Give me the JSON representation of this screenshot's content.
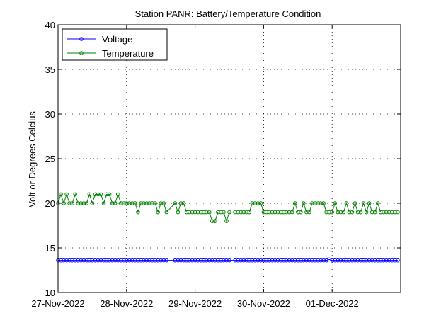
{
  "chart_data": {
    "type": "line",
    "title": "Station PANR: Battery/Temperature Condition",
    "xlabel": "",
    "ylabel": "Volt or Degrees Celcius",
    "ylim": [
      10,
      40
    ],
    "xlim": [
      0,
      5
    ],
    "yticks": [
      10,
      15,
      20,
      25,
      30,
      35,
      40
    ],
    "x_tick_positions": [
      0,
      1,
      2,
      3,
      4
    ],
    "x_tick_labels": [
      "27-Nov-2022",
      "28-Nov-2022",
      "29-Nov-2022",
      "30-Nov-2022",
      "01-Dec-2022"
    ],
    "grid": true,
    "legend_position": "top-left",
    "series": [
      {
        "name": "Voltage",
        "color": "#0000ff",
        "marker": "circle",
        "x": [
          0,
          0.0417,
          0.0833,
          0.125,
          0.1667,
          0.2083,
          0.25,
          0.2917,
          0.3333,
          0.375,
          0.4167,
          0.4583,
          0.5,
          0.5417,
          0.5833,
          0.625,
          0.6667,
          0.7083,
          0.75,
          0.7917,
          0.8333,
          0.875,
          0.9167,
          0.9583,
          1,
          1.0417,
          1.0833,
          1.125,
          1.1667,
          1.2083,
          1.25,
          1.2917,
          1.3333,
          1.375,
          1.4167,
          1.4583,
          1.5,
          1.5417,
          1.5833,
          1.7083,
          1.75,
          1.7917,
          1.8333,
          1.875,
          1.9167,
          1.9583,
          2,
          2.0417,
          2.0833,
          2.125,
          2.1667,
          2.2083,
          2.25,
          2.2917,
          2.3333,
          2.375,
          2.4167,
          2.4583,
          2.5,
          2.5833,
          2.625,
          2.6667,
          2.7083,
          2.75,
          2.7917,
          2.8333,
          2.875,
          2.9167,
          2.9583,
          3,
          3.0417,
          3.0833,
          3.125,
          3.1667,
          3.2083,
          3.25,
          3.2917,
          3.3333,
          3.375,
          3.4167,
          3.4583,
          3.5,
          3.5417,
          3.5833,
          3.625,
          3.6667,
          3.7083,
          3.75,
          3.7917,
          3.8333,
          3.875,
          3.9167,
          3.9583,
          4,
          4.0417,
          4.0833,
          4.125,
          4.1667,
          4.2083,
          4.25,
          4.2917,
          4.3333,
          4.375,
          4.4167,
          4.4583,
          4.5,
          4.5417,
          4.5833,
          4.625,
          4.6667,
          4.7083,
          4.75,
          4.7917,
          4.8333,
          4.875,
          4.9167,
          4.9583
        ],
        "y": [
          13.6,
          13.6,
          13.6,
          13.6,
          13.6,
          13.6,
          13.6,
          13.6,
          13.6,
          13.6,
          13.6,
          13.6,
          13.6,
          13.6,
          13.6,
          13.6,
          13.6,
          13.6,
          13.6,
          13.6,
          13.6,
          13.6,
          13.6,
          13.6,
          13.6,
          13.6,
          13.6,
          13.6,
          13.6,
          13.6,
          13.6,
          13.6,
          13.6,
          13.6,
          13.6,
          13.6,
          13.6,
          13.6,
          13.6,
          13.6,
          13.6,
          13.6,
          13.6,
          13.6,
          13.6,
          13.6,
          13.6,
          13.6,
          13.6,
          13.6,
          13.6,
          13.6,
          13.6,
          13.6,
          13.6,
          13.6,
          13.6,
          13.6,
          13.6,
          13.6,
          13.6,
          13.6,
          13.6,
          13.6,
          13.6,
          13.6,
          13.6,
          13.6,
          13.6,
          13.6,
          13.6,
          13.6,
          13.6,
          13.6,
          13.6,
          13.6,
          13.6,
          13.6,
          13.6,
          13.6,
          13.6,
          13.6,
          13.6,
          13.6,
          13.6,
          13.6,
          13.6,
          13.6,
          13.6,
          13.6,
          13.6,
          13.6,
          13.7,
          13.6,
          13.6,
          13.6,
          13.6,
          13.6,
          13.6,
          13.6,
          13.6,
          13.6,
          13.6,
          13.6,
          13.6,
          13.6,
          13.6,
          13.6,
          13.6,
          13.6,
          13.6,
          13.6,
          13.6,
          13.6,
          13.6,
          13.6,
          13.6
        ]
      },
      {
        "name": "Temperature",
        "color": "#008000",
        "marker": "circle",
        "x": [
          0,
          0.0417,
          0.0833,
          0.125,
          0.1667,
          0.2083,
          0.25,
          0.2917,
          0.3333,
          0.375,
          0.4167,
          0.4583,
          0.5,
          0.5417,
          0.5833,
          0.625,
          0.6667,
          0.7083,
          0.75,
          0.7917,
          0.8333,
          0.875,
          0.9167,
          0.9583,
          1,
          1.0417,
          1.0833,
          1.125,
          1.1667,
          1.2083,
          1.25,
          1.2917,
          1.3333,
          1.375,
          1.4167,
          1.4583,
          1.5,
          1.5417,
          1.5833,
          1.7083,
          1.75,
          1.7917,
          1.8333,
          1.875,
          1.9167,
          1.9583,
          2,
          2.0417,
          2.0833,
          2.125,
          2.1667,
          2.2083,
          2.25,
          2.2917,
          2.3333,
          2.375,
          2.4167,
          2.4583,
          2.5,
          2.5833,
          2.625,
          2.6667,
          2.7083,
          2.75,
          2.7917,
          2.8333,
          2.875,
          2.9167,
          2.9583,
          3,
          3.0417,
          3.0833,
          3.125,
          3.1667,
          3.2083,
          3.25,
          3.2917,
          3.3333,
          3.375,
          3.4167,
          3.4583,
          3.5,
          3.5417,
          3.5833,
          3.625,
          3.6667,
          3.7083,
          3.75,
          3.7917,
          3.8333,
          3.875,
          3.9167,
          3.9583,
          4,
          4.0417,
          4.0833,
          4.125,
          4.1667,
          4.2083,
          4.25,
          4.2917,
          4.3333,
          4.375,
          4.4167,
          4.4583,
          4.5,
          4.5417,
          4.5833,
          4.625,
          4.6667,
          4.7083,
          4.75,
          4.7917,
          4.8333,
          4.875,
          4.9167,
          4.9583
        ],
        "y": [
          20,
          21,
          20,
          21,
          20,
          20,
          21,
          20,
          20,
          20,
          20,
          21,
          20,
          21,
          21,
          21,
          20,
          21,
          21,
          20,
          20,
          21,
          20,
          20,
          20,
          20,
          20,
          20,
          19,
          20,
          20,
          20,
          20,
          20,
          20,
          19,
          20,
          20,
          19,
          20,
          19,
          20,
          20,
          19,
          19,
          19,
          19,
          19,
          19,
          19,
          19,
          19,
          18,
          18,
          19,
          19,
          19,
          18,
          19,
          19,
          19,
          19,
          19,
          19,
          19,
          20,
          20,
          20,
          20,
          19,
          19,
          19,
          19,
          19,
          19,
          19,
          19,
          19,
          19,
          19,
          20,
          19,
          19,
          20,
          19,
          19,
          20,
          20,
          20,
          20,
          20,
          19,
          19,
          19,
          20,
          19,
          19,
          19,
          20,
          19,
          19,
          20,
          19,
          19,
          20,
          19,
          20,
          19,
          19,
          20,
          19,
          19,
          19,
          19,
          19,
          19,
          19
        ]
      }
    ]
  }
}
